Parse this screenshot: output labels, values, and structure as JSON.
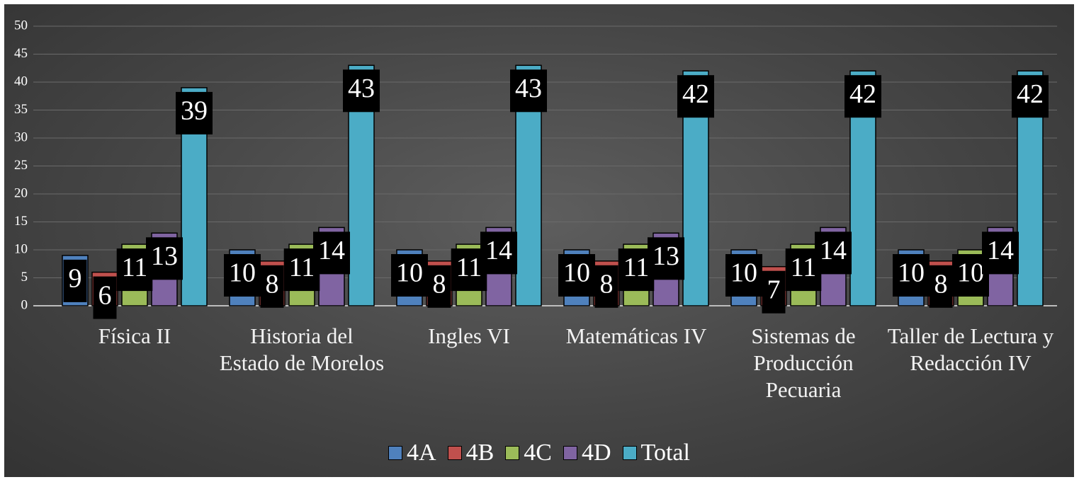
{
  "chart_data": {
    "type": "bar",
    "categories": [
      "Física II",
      "Historia del Estado de Morelos",
      "Ingles VI",
      "Matemáticas IV",
      "Sistemas de Producción Pecuaria",
      "Taller de Lectura y Redacción IV"
    ],
    "series": [
      {
        "name": "4A",
        "color": "#4f81bd",
        "values": [
          9,
          10,
          10,
          10,
          10,
          10
        ]
      },
      {
        "name": "4B",
        "color": "#c0504d",
        "values": [
          6,
          8,
          8,
          8,
          7,
          8
        ]
      },
      {
        "name": "4C",
        "color": "#9bbb59",
        "values": [
          11,
          11,
          11,
          11,
          11,
          10
        ]
      },
      {
        "name": "4D",
        "color": "#8064a2",
        "values": [
          13,
          14,
          14,
          13,
          14,
          14
        ]
      },
      {
        "name": "Total",
        "color": "#4bacc6",
        "values": [
          39,
          43,
          43,
          42,
          42,
          42
        ]
      }
    ],
    "ylim": [
      0,
      50
    ],
    "yticks": [
      0,
      5,
      10,
      15,
      20,
      25,
      30,
      35,
      40,
      45,
      50
    ],
    "grid": true,
    "legend": "bottom"
  }
}
